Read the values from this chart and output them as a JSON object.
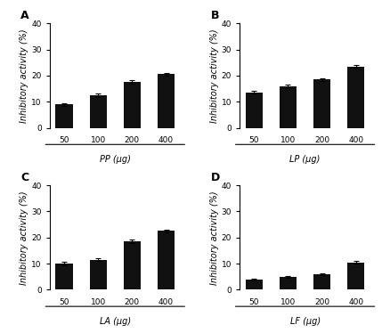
{
  "panels": [
    {
      "label": "A",
      "xlabel": "PP (μg)",
      "categories": [
        "50",
        "100",
        "200",
        "400"
      ],
      "values": [
        9.0,
        12.5,
        17.5,
        20.5
      ],
      "errors": [
        0.5,
        0.6,
        0.7,
        0.6
      ]
    },
    {
      "label": "B",
      "xlabel": "LP (μg)",
      "categories": [
        "50",
        "100",
        "200",
        "400"
      ],
      "values": [
        13.5,
        16.0,
        18.5,
        23.5
      ],
      "errors": [
        0.5,
        0.7,
        0.5,
        0.6
      ]
    },
    {
      "label": "C",
      "xlabel": "LA (μg)",
      "categories": [
        "50",
        "100",
        "200",
        "400"
      ],
      "values": [
        10.0,
        11.5,
        18.5,
        22.5
      ],
      "errors": [
        0.6,
        0.5,
        0.7,
        0.6
      ]
    },
    {
      "label": "D",
      "xlabel": "LF (μg)",
      "categories": [
        "50",
        "100",
        "200",
        "400"
      ],
      "values": [
        4.0,
        5.0,
        6.0,
        10.5
      ],
      "errors": [
        0.3,
        0.3,
        0.4,
        0.5
      ]
    }
  ],
  "bar_color": "#111111",
  "bar_width": 0.5,
  "ylim": [
    0,
    40
  ],
  "yticks": [
    0,
    10,
    20,
    30,
    40
  ],
  "ylabel": "Inhibitory activity (%)",
  "background_color": "#ffffff",
  "label_fontsize": 7,
  "tick_fontsize": 6.5,
  "panel_label_fontsize": 9
}
